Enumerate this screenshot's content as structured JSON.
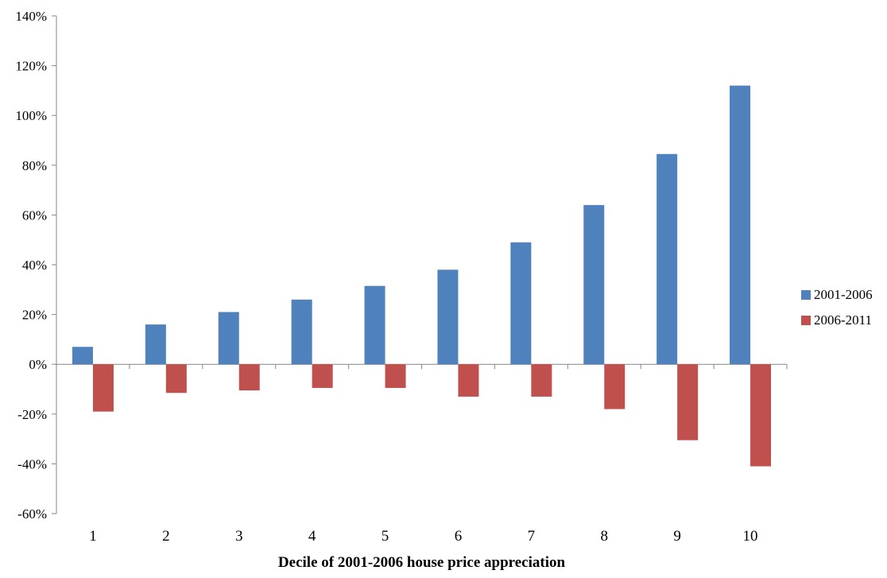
{
  "chart_data": {
    "type": "bar",
    "categories": [
      "1",
      "2",
      "3",
      "4",
      "5",
      "6",
      "7",
      "8",
      "9",
      "10"
    ],
    "series": [
      {
        "name": "2001-2006",
        "color": "#4f81bd",
        "values": [
          7,
          16,
          21,
          26,
          31.5,
          38,
          49,
          64,
          84.5,
          112
        ]
      },
      {
        "name": "2006-2011",
        "color": "#c0504d",
        "values": [
          -19,
          -11.5,
          -10.5,
          -9.5,
          -9.5,
          -13,
          -13,
          -18,
          -30.5,
          -41
        ]
      }
    ],
    "title": "",
    "xlabel": "Decile of 2001-2006 house price appreciation",
    "ylabel": "",
    "ylim": [
      -60,
      140
    ],
    "yticks": [
      -60,
      -40,
      -20,
      0,
      20,
      40,
      60,
      80,
      100,
      120,
      140
    ],
    "ytick_labels": [
      "-60%",
      "-40%",
      "-20%",
      "0%",
      "20%",
      "40%",
      "60%",
      "80%",
      "100%",
      "120%",
      "140%"
    ],
    "grid": false,
    "legend_position": "right"
  }
}
